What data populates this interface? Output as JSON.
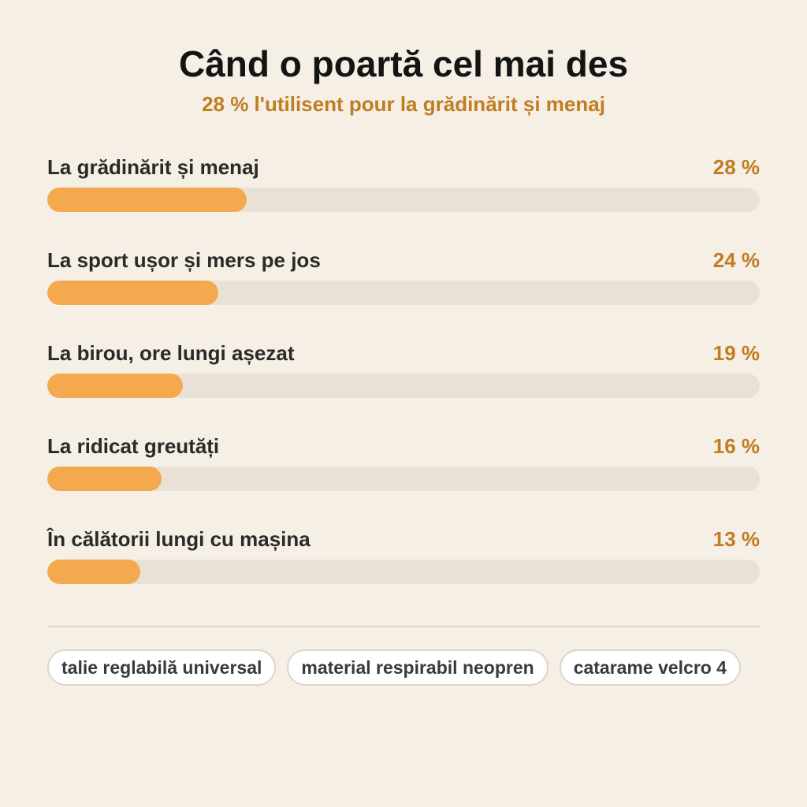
{
  "header": {
    "title": "Când o poartă cel mai des",
    "subtitle": "28 % l'utilisent pour la grădinărit și menaj"
  },
  "colors": {
    "background": "#f5efe5",
    "bar_fill": "#f5a94e",
    "bar_track": "#e9e1d6",
    "accent_text": "#c07d22"
  },
  "chart_data": {
    "type": "bar",
    "orientation": "horizontal",
    "title": "Când o poartă cel mai des",
    "subtitle": "28 % l'utilisent pour la grădinărit și menaj",
    "categories": [
      "La grădinărit și menaj",
      "La sport ușor și mers pe jos",
      "La birou, ore lungi așezat",
      "La ridicat greutăți",
      "În călătorii lungi cu mașina"
    ],
    "values": [
      28,
      24,
      19,
      16,
      13
    ],
    "value_labels": [
      "28 %",
      "24 %",
      "19 %",
      "16 %",
      "13 %"
    ],
    "unit": "%",
    "xlim": [
      0,
      100
    ],
    "grid": false,
    "legend": "none"
  },
  "tags": [
    "talie reglabilă universal",
    "material respirabil neopren",
    "catarame velcro 4"
  ]
}
